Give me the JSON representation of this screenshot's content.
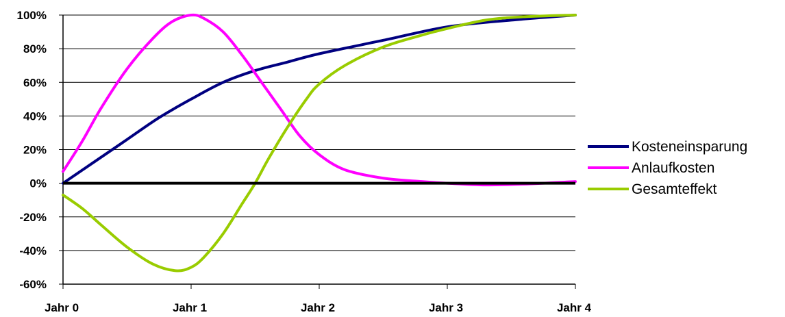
{
  "chart_data": {
    "type": "line",
    "title": "",
    "xlabel": "",
    "ylabel": "",
    "categories": [
      "Jahr 0",
      "Jahr 1",
      "Jahr 2",
      "Jahr 3",
      "Jahr 4"
    ],
    "ylim": [
      -60,
      100
    ],
    "yticks": [
      -60,
      -40,
      -20,
      0,
      20,
      40,
      60,
      80,
      100
    ],
    "ytick_labels": [
      "-60%",
      "-40%",
      "-20%",
      "0%",
      "20%",
      "40%",
      "60%",
      "80%",
      "100%"
    ],
    "grid": true,
    "legend_position": "right",
    "series": [
      {
        "name": "Kosteneinsparung",
        "color": "#000080",
        "points": [
          [
            0,
            0
          ],
          [
            0.25,
            13
          ],
          [
            0.5,
            26
          ],
          [
            0.75,
            39
          ],
          [
            1,
            50
          ],
          [
            1.25,
            60
          ],
          [
            1.5,
            67
          ],
          [
            1.75,
            72
          ],
          [
            2,
            77
          ],
          [
            2.5,
            85
          ],
          [
            3,
            93
          ],
          [
            3.5,
            97
          ],
          [
            4,
            100
          ]
        ]
      },
      {
        "name": "Anlaufkosten",
        "color": "#ff00ff",
        "points": [
          [
            0,
            7
          ],
          [
            0.15,
            25
          ],
          [
            0.3,
            45
          ],
          [
            0.5,
            68
          ],
          [
            0.7,
            86
          ],
          [
            0.85,
            96
          ],
          [
            1,
            100
          ],
          [
            1.1,
            98
          ],
          [
            1.25,
            90
          ],
          [
            1.4,
            76
          ],
          [
            1.55,
            60
          ],
          [
            1.7,
            44
          ],
          [
            1.85,
            28
          ],
          [
            2,
            17
          ],
          [
            2.2,
            8
          ],
          [
            2.5,
            3
          ],
          [
            2.8,
            1
          ],
          [
            3,
            0
          ],
          [
            3.3,
            -1
          ],
          [
            3.6,
            -0.5
          ],
          [
            4,
            1
          ]
        ]
      },
      {
        "name": "Gesamteffekt",
        "color": "#99cc00",
        "points": [
          [
            0,
            -7
          ],
          [
            0.15,
            -15
          ],
          [
            0.3,
            -25
          ],
          [
            0.5,
            -38
          ],
          [
            0.7,
            -48
          ],
          [
            0.88,
            -52
          ],
          [
            1,
            -50
          ],
          [
            1.1,
            -44
          ],
          [
            1.25,
            -30
          ],
          [
            1.4,
            -12
          ],
          [
            1.5,
            0
          ],
          [
            1.6,
            14
          ],
          [
            1.75,
            33
          ],
          [
            1.9,
            50
          ],
          [
            2,
            59
          ],
          [
            2.2,
            70
          ],
          [
            2.5,
            81
          ],
          [
            2.8,
            88
          ],
          [
            3,
            92
          ],
          [
            3.3,
            97
          ],
          [
            3.6,
            99
          ],
          [
            4,
            100
          ]
        ]
      }
    ]
  }
}
